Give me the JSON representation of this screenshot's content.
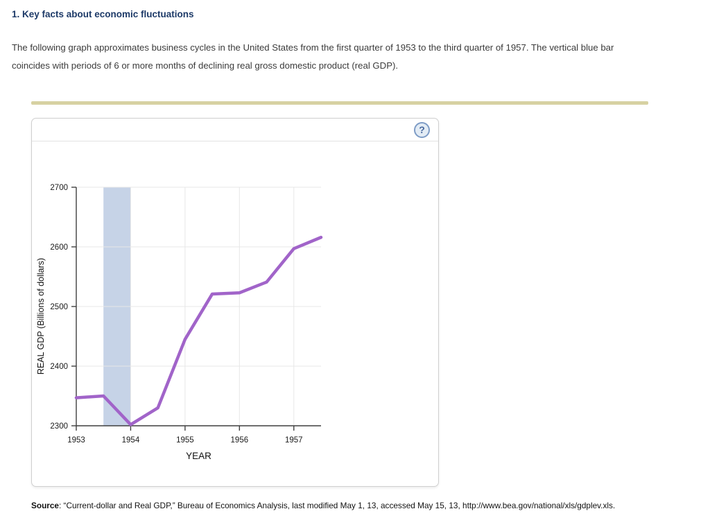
{
  "page": {
    "heading": "1. Key facts about economic fluctuations",
    "paragraph_lines": [
      "The following graph approximates business cycles in the United States from the first quarter of 1953 to the third quarter of 1957. The vertical blue bar",
      "coincides with periods of 6 or more months of declining real gross domestic product (real GDP)."
    ],
    "source_label": "Source",
    "source_text": ": “Current-dollar and Real GDP,” Bureau of Economics Analysis, last modified May 1, 13, accessed May 15, 13, http://www.bea.gov/national/xls/gdplev.xls."
  },
  "panel": {
    "help_glyph": "?"
  },
  "colors": {
    "heading": "#1d3a68",
    "divider": "#d7d1a2",
    "help_border": "#7e9cc6",
    "help_fill": "#e3ecf5"
  },
  "chart_data": {
    "type": "line",
    "title": "",
    "xlabel": "YEAR",
    "ylabel": "REAL GDP (Billions of dollars)",
    "x": [
      1953,
      1953.5,
      1954,
      1954.5,
      1955,
      1955.5,
      1956,
      1956.5,
      1957,
      1957.5
    ],
    "series": [
      {
        "name": "Real GDP",
        "values": [
          2347,
          2350,
          2302,
          2330,
          2445,
          2521,
          2523,
          2541,
          2597,
          2616
        ]
      }
    ],
    "xlim": [
      1953,
      1957.5
    ],
    "ylim": [
      2300,
      2700
    ],
    "x_ticks": [
      1953,
      1954,
      1955,
      1956,
      1957
    ],
    "y_ticks": [
      2300,
      2400,
      2500,
      2600,
      2700
    ],
    "recession_band": {
      "x_start": 1953.5,
      "x_end": 1954,
      "label": "declining real GDP period"
    },
    "grid": true,
    "legend": "none",
    "line_color": "#a164c9",
    "band_color": "#c6d3e7",
    "grid_color": "#e7e7e7",
    "axis_color": "#3f3f3f",
    "tick_label_color": "#1a1a1a"
  }
}
